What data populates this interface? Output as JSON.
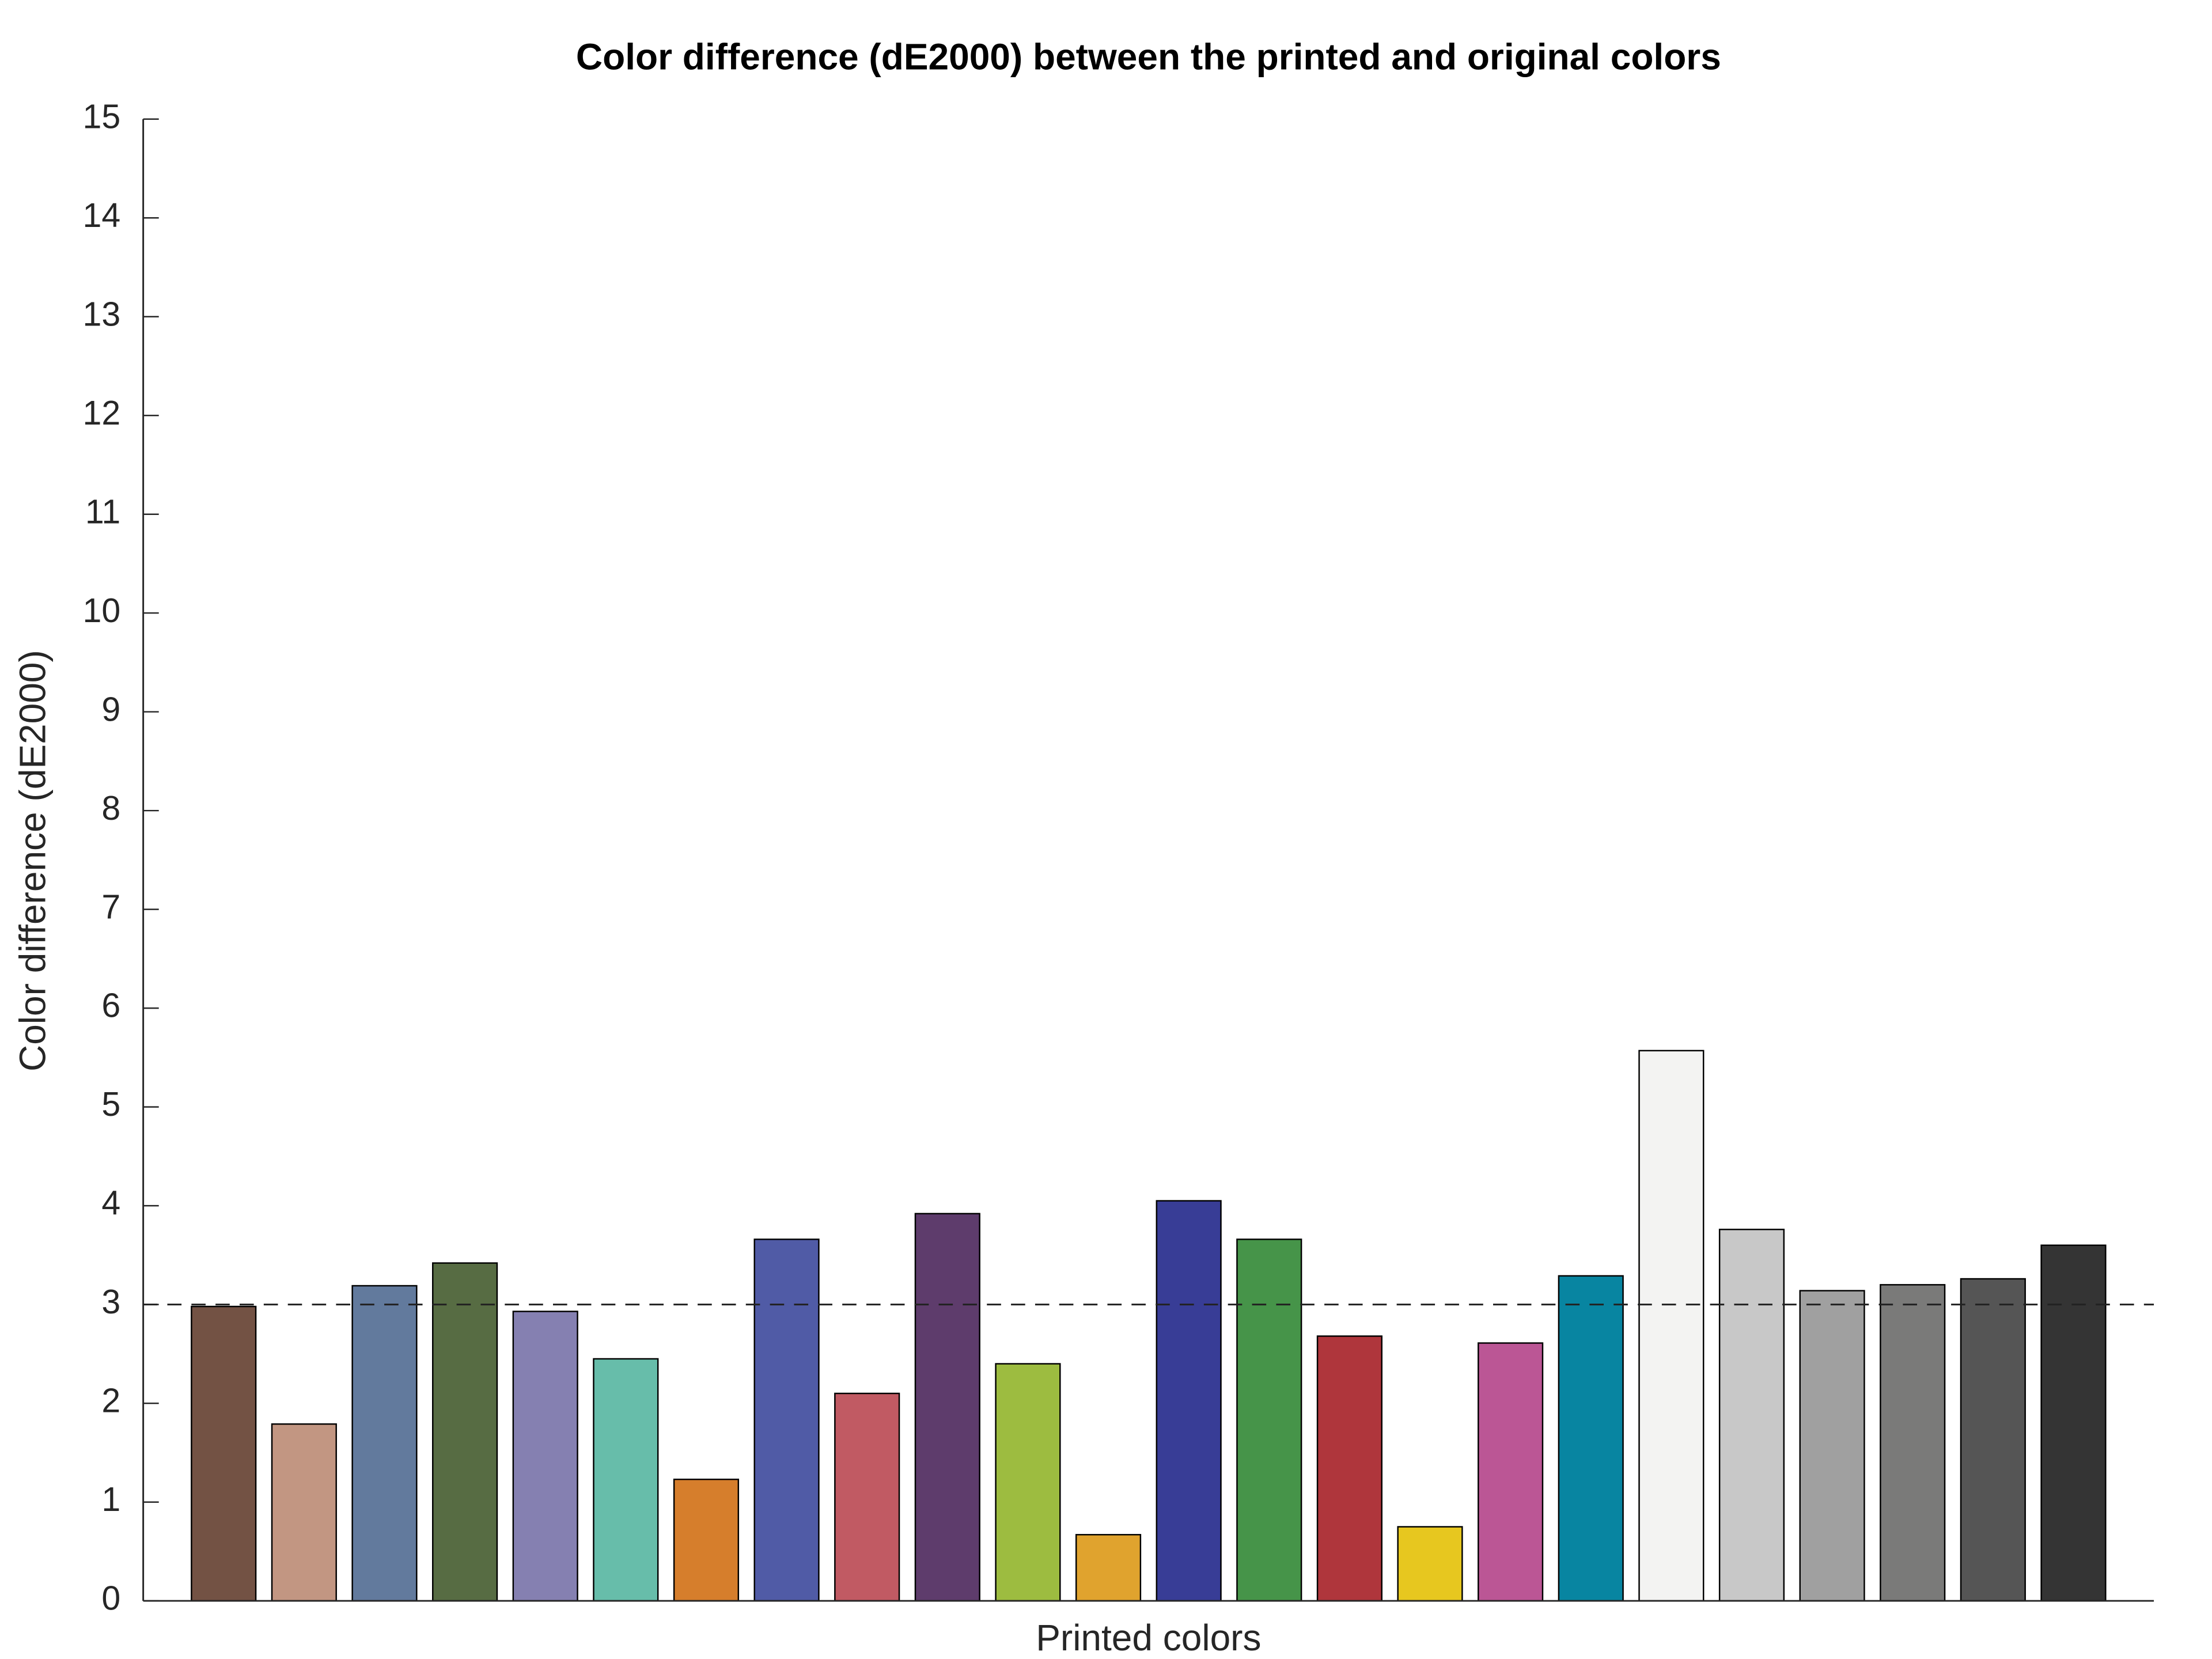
{
  "chart_data": {
    "type": "bar",
    "title": "Color difference (dE2000) between the printed and original colors",
    "x_label": "Printed colors",
    "y_label": "Color difference (dE2000)",
    "categories": [
      null,
      null,
      null,
      null,
      null,
      null,
      null,
      null,
      null,
      null,
      null,
      null,
      null,
      null,
      null,
      null,
      null,
      null,
      null,
      null,
      null,
      null,
      null,
      null
    ],
    "values": [
      2.98,
      1.79,
      3.19,
      3.42,
      2.93,
      2.45,
      1.23,
      3.66,
      2.1,
      3.92,
      2.4,
      0.67,
      4.05,
      3.66,
      2.68,
      0.75,
      2.61,
      3.29,
      5.57,
      3.76,
      3.14,
      3.2,
      3.26,
      3.6
    ],
    "colors": [
      "#735244",
      "#c29682",
      "#627a9d",
      "#576c43",
      "#8580b1",
      "#67bdaa",
      "#d67e2c",
      "#505ba6",
      "#c15a63",
      "#5e3c6c",
      "#9dbc40",
      "#e0a32e",
      "#383d96",
      "#469449",
      "#af363c",
      "#e7c71f",
      "#bb5695",
      "#0885a1",
      "#f3f3f2",
      "#c8c8c8",
      "#a0a0a0",
      "#7a7a79",
      "#555555",
      "#343434"
    ],
    "threshold": 3,
    "ylim": [
      0,
      15
    ],
    "yticks": [
      0,
      1,
      2,
      3,
      4,
      5,
      6,
      7,
      8,
      9,
      10,
      11,
      12,
      13,
      14,
      15
    ],
    "grid": false
  }
}
